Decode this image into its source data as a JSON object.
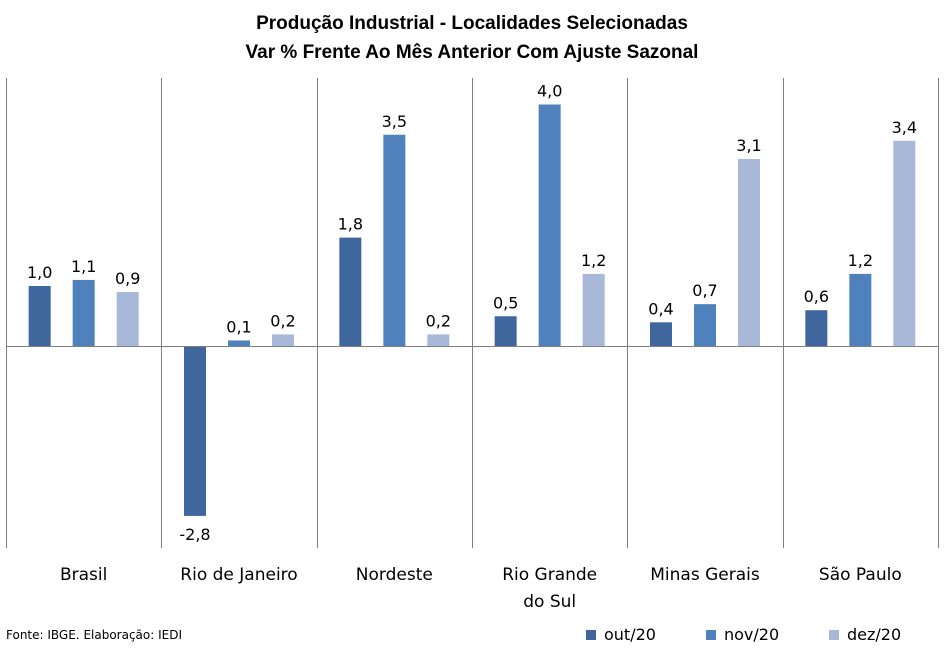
{
  "chart_data": {
    "type": "bar",
    "title": "Produção Industrial - Localidades Selecionadas",
    "subtitle": "Var % Frente Ao Mês Anterior Com Ajuste Sazonal",
    "categories": [
      "Brasil",
      "Rio de Janeiro",
      "Nordeste",
      "Rio Grande do Sul",
      "Minas Gerais",
      "São Paulo"
    ],
    "category_lines": [
      [
        "Brasil"
      ],
      [
        "Rio de Janeiro"
      ],
      [
        "Nordeste"
      ],
      [
        "Rio Grande",
        "do Sul"
      ],
      [
        "Minas Gerais"
      ],
      [
        "São Paulo"
      ]
    ],
    "series": [
      {
        "name": "out/20",
        "color": "#3f679e",
        "values": [
          1.0,
          -2.8,
          1.8,
          0.5,
          0.4,
          0.6
        ],
        "labels": [
          "1,0",
          "-2,8",
          "1,8",
          "0,5",
          "0,4",
          "0,6"
        ]
      },
      {
        "name": "nov/20",
        "color": "#4f81bd",
        "values": [
          1.1,
          0.1,
          3.5,
          4.0,
          0.7,
          1.2
        ],
        "labels": [
          "1,1",
          "0,1",
          "3,5",
          "4,0",
          "0,7",
          "1,2"
        ]
      },
      {
        "name": "dez/20",
        "color": "#a8b8d8",
        "values": [
          0.9,
          0.2,
          0.2,
          1.2,
          3.1,
          3.4
        ],
        "labels": [
          "0,9",
          "0,2",
          "0,2",
          "1,2",
          "3,1",
          "3,4"
        ]
      }
    ],
    "xlabel": "",
    "ylabel": "",
    "grid": "vertical category separators",
    "legend": "bottom-right"
  },
  "source": "Fonte: IBGE. Elaboração: IEDI"
}
